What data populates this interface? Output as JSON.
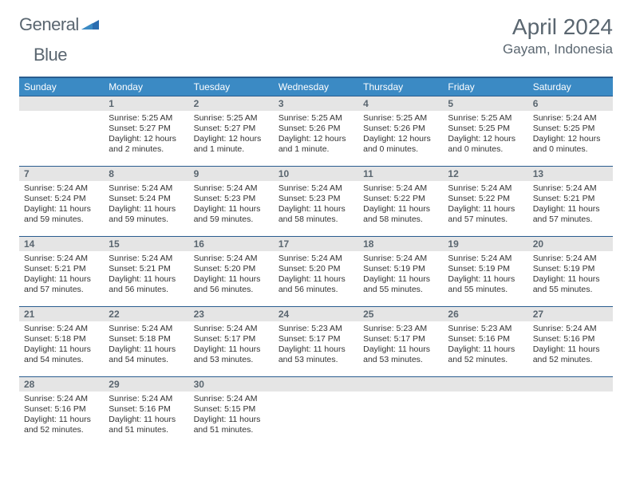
{
  "logo": {
    "word1": "General",
    "word2": "Blue"
  },
  "title": "April 2024",
  "location": "Gayam, Indonesia",
  "colors": {
    "header_bg": "#3b8ac4",
    "border": "#2a5d8f",
    "daynum_bg": "#e5e5e5",
    "text_muted": "#5a6670"
  },
  "weekdays": [
    "Sunday",
    "Monday",
    "Tuesday",
    "Wednesday",
    "Thursday",
    "Friday",
    "Saturday"
  ],
  "weeks": [
    [
      {
        "n": "",
        "sr": "",
        "ss": "",
        "dl": ""
      },
      {
        "n": "1",
        "sr": "Sunrise: 5:25 AM",
        "ss": "Sunset: 5:27 PM",
        "dl": "Daylight: 12 hours and 2 minutes."
      },
      {
        "n": "2",
        "sr": "Sunrise: 5:25 AM",
        "ss": "Sunset: 5:27 PM",
        "dl": "Daylight: 12 hours and 1 minute."
      },
      {
        "n": "3",
        "sr": "Sunrise: 5:25 AM",
        "ss": "Sunset: 5:26 PM",
        "dl": "Daylight: 12 hours and 1 minute."
      },
      {
        "n": "4",
        "sr": "Sunrise: 5:25 AM",
        "ss": "Sunset: 5:26 PM",
        "dl": "Daylight: 12 hours and 0 minutes."
      },
      {
        "n": "5",
        "sr": "Sunrise: 5:25 AM",
        "ss": "Sunset: 5:25 PM",
        "dl": "Daylight: 12 hours and 0 minutes."
      },
      {
        "n": "6",
        "sr": "Sunrise: 5:24 AM",
        "ss": "Sunset: 5:25 PM",
        "dl": "Daylight: 12 hours and 0 minutes."
      }
    ],
    [
      {
        "n": "7",
        "sr": "Sunrise: 5:24 AM",
        "ss": "Sunset: 5:24 PM",
        "dl": "Daylight: 11 hours and 59 minutes."
      },
      {
        "n": "8",
        "sr": "Sunrise: 5:24 AM",
        "ss": "Sunset: 5:24 PM",
        "dl": "Daylight: 11 hours and 59 minutes."
      },
      {
        "n": "9",
        "sr": "Sunrise: 5:24 AM",
        "ss": "Sunset: 5:23 PM",
        "dl": "Daylight: 11 hours and 59 minutes."
      },
      {
        "n": "10",
        "sr": "Sunrise: 5:24 AM",
        "ss": "Sunset: 5:23 PM",
        "dl": "Daylight: 11 hours and 58 minutes."
      },
      {
        "n": "11",
        "sr": "Sunrise: 5:24 AM",
        "ss": "Sunset: 5:22 PM",
        "dl": "Daylight: 11 hours and 58 minutes."
      },
      {
        "n": "12",
        "sr": "Sunrise: 5:24 AM",
        "ss": "Sunset: 5:22 PM",
        "dl": "Daylight: 11 hours and 57 minutes."
      },
      {
        "n": "13",
        "sr": "Sunrise: 5:24 AM",
        "ss": "Sunset: 5:21 PM",
        "dl": "Daylight: 11 hours and 57 minutes."
      }
    ],
    [
      {
        "n": "14",
        "sr": "Sunrise: 5:24 AM",
        "ss": "Sunset: 5:21 PM",
        "dl": "Daylight: 11 hours and 57 minutes."
      },
      {
        "n": "15",
        "sr": "Sunrise: 5:24 AM",
        "ss": "Sunset: 5:21 PM",
        "dl": "Daylight: 11 hours and 56 minutes."
      },
      {
        "n": "16",
        "sr": "Sunrise: 5:24 AM",
        "ss": "Sunset: 5:20 PM",
        "dl": "Daylight: 11 hours and 56 minutes."
      },
      {
        "n": "17",
        "sr": "Sunrise: 5:24 AM",
        "ss": "Sunset: 5:20 PM",
        "dl": "Daylight: 11 hours and 56 minutes."
      },
      {
        "n": "18",
        "sr": "Sunrise: 5:24 AM",
        "ss": "Sunset: 5:19 PM",
        "dl": "Daylight: 11 hours and 55 minutes."
      },
      {
        "n": "19",
        "sr": "Sunrise: 5:24 AM",
        "ss": "Sunset: 5:19 PM",
        "dl": "Daylight: 11 hours and 55 minutes."
      },
      {
        "n": "20",
        "sr": "Sunrise: 5:24 AM",
        "ss": "Sunset: 5:19 PM",
        "dl": "Daylight: 11 hours and 55 minutes."
      }
    ],
    [
      {
        "n": "21",
        "sr": "Sunrise: 5:24 AM",
        "ss": "Sunset: 5:18 PM",
        "dl": "Daylight: 11 hours and 54 minutes."
      },
      {
        "n": "22",
        "sr": "Sunrise: 5:24 AM",
        "ss": "Sunset: 5:18 PM",
        "dl": "Daylight: 11 hours and 54 minutes."
      },
      {
        "n": "23",
        "sr": "Sunrise: 5:24 AM",
        "ss": "Sunset: 5:17 PM",
        "dl": "Daylight: 11 hours and 53 minutes."
      },
      {
        "n": "24",
        "sr": "Sunrise: 5:23 AM",
        "ss": "Sunset: 5:17 PM",
        "dl": "Daylight: 11 hours and 53 minutes."
      },
      {
        "n": "25",
        "sr": "Sunrise: 5:23 AM",
        "ss": "Sunset: 5:17 PM",
        "dl": "Daylight: 11 hours and 53 minutes."
      },
      {
        "n": "26",
        "sr": "Sunrise: 5:23 AM",
        "ss": "Sunset: 5:16 PM",
        "dl": "Daylight: 11 hours and 52 minutes."
      },
      {
        "n": "27",
        "sr": "Sunrise: 5:24 AM",
        "ss": "Sunset: 5:16 PM",
        "dl": "Daylight: 11 hours and 52 minutes."
      }
    ],
    [
      {
        "n": "28",
        "sr": "Sunrise: 5:24 AM",
        "ss": "Sunset: 5:16 PM",
        "dl": "Daylight: 11 hours and 52 minutes."
      },
      {
        "n": "29",
        "sr": "Sunrise: 5:24 AM",
        "ss": "Sunset: 5:16 PM",
        "dl": "Daylight: 11 hours and 51 minutes."
      },
      {
        "n": "30",
        "sr": "Sunrise: 5:24 AM",
        "ss": "Sunset: 5:15 PM",
        "dl": "Daylight: 11 hours and 51 minutes."
      },
      {
        "n": "",
        "sr": "",
        "ss": "",
        "dl": ""
      },
      {
        "n": "",
        "sr": "",
        "ss": "",
        "dl": ""
      },
      {
        "n": "",
        "sr": "",
        "ss": "",
        "dl": ""
      },
      {
        "n": "",
        "sr": "",
        "ss": "",
        "dl": ""
      }
    ]
  ]
}
